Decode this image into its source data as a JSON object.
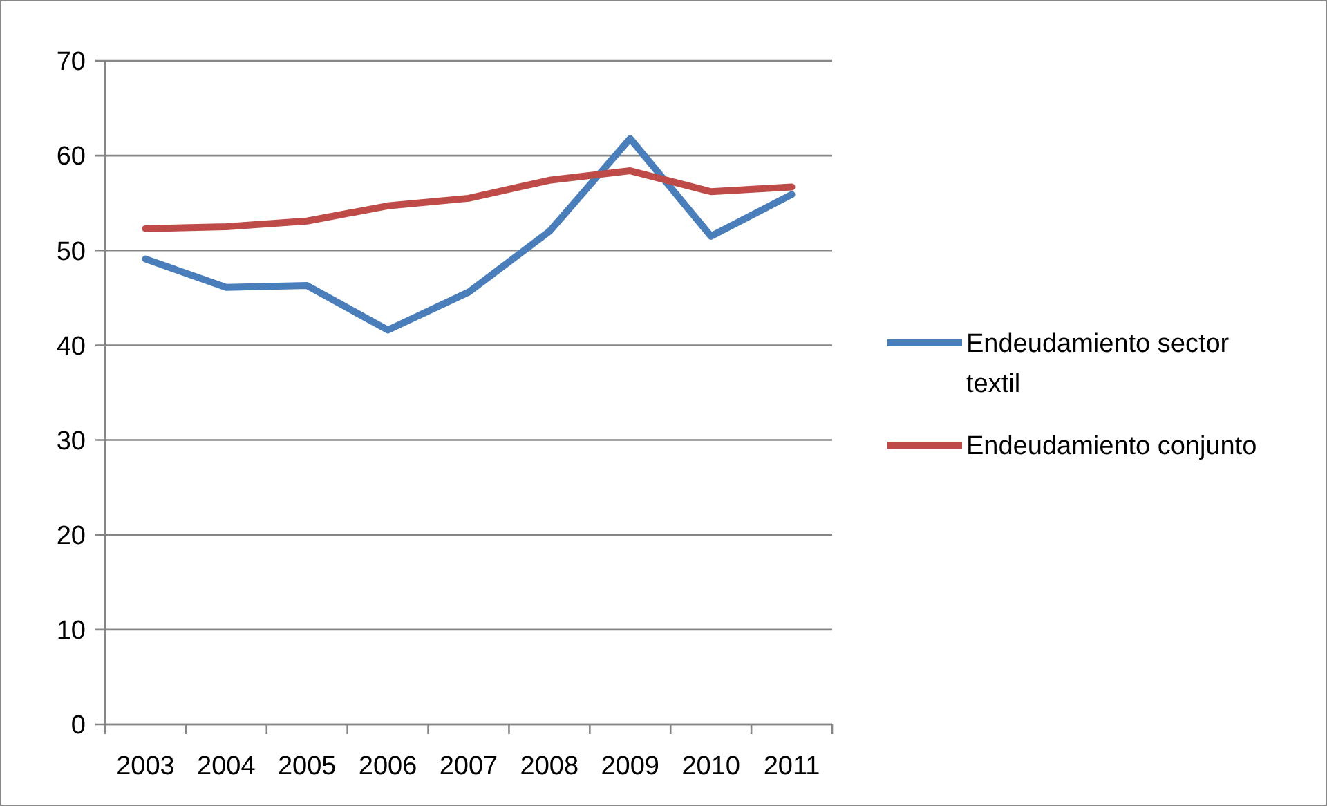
{
  "chart_data": {
    "type": "line",
    "categories": [
      "2003",
      "2004",
      "2005",
      "2006",
      "2007",
      "2008",
      "2009",
      "2010",
      "2011"
    ],
    "series": [
      {
        "name": "Endeudamiento sector textil",
        "color": "#4a7ebb",
        "values": [
          49.1,
          46.1,
          46.3,
          41.6,
          45.6,
          52.0,
          61.8,
          51.5,
          55.9
        ]
      },
      {
        "name": "Endeudamiento conjunto",
        "color": "#be4b48",
        "values": [
          52.3,
          52.5,
          53.1,
          54.7,
          55.5,
          57.4,
          58.4,
          56.2,
          56.7
        ]
      }
    ],
    "ylim": [
      0,
      70
    ],
    "yticks": [
      0,
      10,
      20,
      30,
      40,
      50,
      60,
      70
    ],
    "grid": "y",
    "legend": "right",
    "marker": "none",
    "line_style": "solid"
  }
}
